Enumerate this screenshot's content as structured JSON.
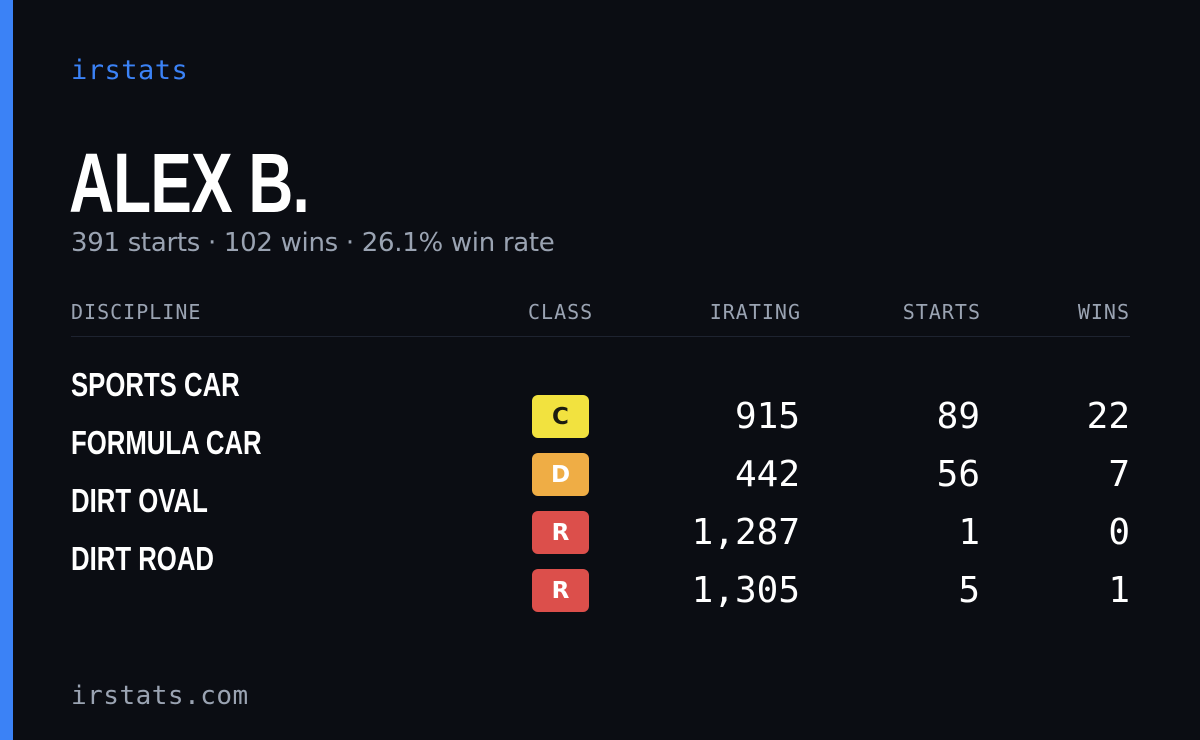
{
  "brand": "irstats",
  "player": {
    "name": "ALEX B.",
    "summary": "391 starts · 102 wins · 26.1% win rate"
  },
  "table": {
    "headers": {
      "discipline": "DISCIPLINE",
      "class": "CLASS",
      "irating": "IRATING",
      "starts": "STARTS",
      "wins": "WINS"
    },
    "rows": [
      {
        "discipline": "SPORTS CAR",
        "class": "C",
        "irating": "915",
        "starts": "89",
        "wins": "22"
      },
      {
        "discipline": "FORMULA CAR",
        "class": "D",
        "irating": "442",
        "starts": "56",
        "wins": "7"
      },
      {
        "discipline": "DIRT OVAL",
        "class": "R",
        "irating": "1,287",
        "starts": "1",
        "wins": "0"
      },
      {
        "discipline": "DIRT ROAD",
        "class": "R",
        "irating": "1,305",
        "starts": "5",
        "wins": "1"
      }
    ]
  },
  "footer": "irstats.com",
  "colors": {
    "background": "#0b0d13",
    "accent": "#3b82f6",
    "class_C": "#f2e23f",
    "class_D": "#efad45",
    "class_R": "#dc4f4b"
  }
}
